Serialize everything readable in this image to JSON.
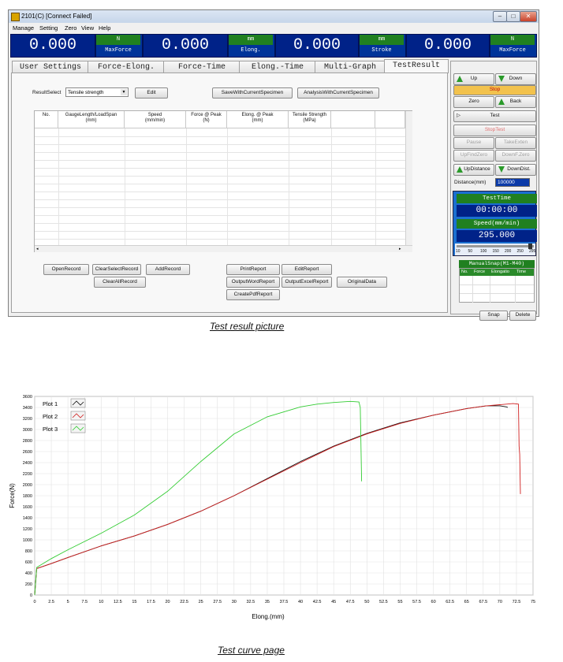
{
  "window": {
    "title": "2101(C)  [Connect Failed]",
    "menus": [
      "Manage",
      "Setting",
      "Zero",
      "View",
      "Help"
    ]
  },
  "readouts": [
    {
      "value": "0.000",
      "unit": "N",
      "label": "MaxForce"
    },
    {
      "value": "0.000",
      "unit": "mm",
      "label": "Elong."
    },
    {
      "value": "0.000",
      "unit": "mm",
      "label": "Stroke"
    },
    {
      "value": "0.000",
      "unit": "N",
      "label": "MaxForce"
    }
  ],
  "tabs": [
    "User Settings",
    "Force-Elong.",
    "Force-Time",
    "Elong.-Time",
    "Multi-Graph",
    "TestResult"
  ],
  "result": {
    "select_label": "ResultSelect",
    "select_value": "Tensile strength",
    "edit": "Edit",
    "save_with": "SaveWithCurrentSpecimen",
    "analysis_with": "AnalysisWithCurrentSpecimen",
    "columns": [
      "No.",
      "GaugeLength/LoadSpan\n(mm)",
      "Speed\n(mm/min)",
      "Force @ Peak\n(N)",
      "Elong. @ Peak\n(mm)",
      "Tensile Strength\n(MPa)"
    ],
    "buttons": {
      "open": "OpenRecord",
      "clear_select": "ClearSelectRecord",
      "add": "AddRecord",
      "clear_all": "ClearAllRecord",
      "print": "PrintReport",
      "edit_report": "EditReport",
      "word": "OutputWordReport",
      "excel": "OutputExcelReport",
      "original": "OriginalData",
      "pdf": "CreatePdfReport"
    }
  },
  "control": {
    "up": "Up",
    "down": "Down",
    "stop": "Stop",
    "zero": "Zero",
    "back": "Back",
    "test": "Test",
    "stoptest": "StopTest",
    "pause": "Pause",
    "take_exten": "TakeExten",
    "upfindzero": "UpFindZero",
    "downfzero": "DownF.Zero",
    "updistance": "UpDistance",
    "downdist": "DownDist.",
    "distance_label": "Distance(mm)",
    "distance_value": "100000",
    "testtime_label": "TestTime",
    "testtime_value": "00:00:00",
    "speed_label": "Speed(mm/min)",
    "speed_value": "295.000",
    "slider_ticks": [
      "10",
      "50",
      "100",
      "150",
      "200",
      "250",
      "295"
    ],
    "slider_fraction": 0.98,
    "snap_title": "ManualSnap(M1-M40)",
    "snap_cols": [
      "No.",
      "Force",
      "Elongatio",
      "Time"
    ],
    "snap": "Snap",
    "delete": "Delete"
  },
  "captions": {
    "top": "Test result picture",
    "bottom": "Test curve page"
  },
  "chart_data": {
    "type": "line",
    "xlabel": "Elong.(mm)",
    "ylabel": "Force(N)",
    "xlim": [
      0,
      75
    ],
    "ylim": [
      0,
      3600
    ],
    "xticks": [
      0,
      2.5,
      5,
      7.5,
      10,
      12.5,
      15,
      17.5,
      20,
      22.5,
      25,
      27.5,
      30,
      32.5,
      35,
      37.5,
      40,
      42.5,
      45,
      47.5,
      50,
      52.5,
      55,
      57.5,
      60,
      62.5,
      65,
      67.5,
      70,
      72.5,
      75
    ],
    "yticks": [
      0,
      200,
      400,
      600,
      800,
      1000,
      1200,
      1400,
      1600,
      1800,
      2000,
      2200,
      2400,
      2600,
      2800,
      3000,
      3200,
      3400,
      3600
    ],
    "grid": true,
    "legend": "top-left",
    "series": [
      {
        "name": "Plot 1",
        "color": "#111111",
        "x": [
          0,
          0.3,
          2.5,
          5,
          10,
          15,
          20,
          25,
          30,
          35,
          40,
          45,
          50,
          55,
          60,
          65,
          68,
          70,
          71,
          71.2
        ],
        "y": [
          0,
          480,
          570,
          680,
          890,
          1070,
          1280,
          1520,
          1800,
          2110,
          2420,
          2700,
          2930,
          3120,
          3260,
          3380,
          3430,
          3430,
          3410,
          3400
        ]
      },
      {
        "name": "Plot 2",
        "color": "#d02020",
        "x": [
          0,
          0.3,
          2.5,
          5,
          10,
          15,
          20,
          25,
          30,
          35,
          40,
          45,
          50,
          55,
          60,
          65,
          68,
          70,
          72,
          72.8,
          72.9,
          73.0,
          73.1
        ],
        "y": [
          0,
          480,
          570,
          680,
          890,
          1070,
          1280,
          1520,
          1800,
          2100,
          2400,
          2690,
          2920,
          3110,
          3260,
          3380,
          3430,
          3450,
          3470,
          3460,
          2700,
          2550,
          1830
        ]
      },
      {
        "name": "Plot 3",
        "color": "#33cc33",
        "x": [
          0,
          0.3,
          2.5,
          5,
          10,
          15,
          20,
          25,
          30,
          35,
          40,
          42.5,
          45,
          47.5,
          48.8,
          49.0,
          49.2
        ],
        "y": [
          0,
          500,
          660,
          820,
          1120,
          1450,
          1880,
          2420,
          2920,
          3230,
          3410,
          3460,
          3490,
          3510,
          3500,
          3400,
          2060
        ]
      }
    ]
  }
}
